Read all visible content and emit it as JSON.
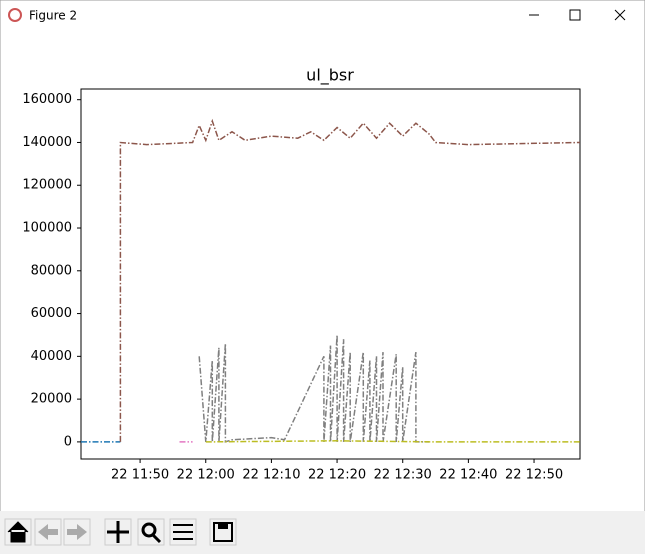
{
  "window": {
    "title": "Figure 2"
  },
  "chart_data": {
    "type": "line",
    "title": "ul_bsr",
    "xlim": [
      "22 11:41",
      "22 12:57"
    ],
    "xticks": [
      "22 11:50",
      "22 12:00",
      "22 12:10",
      "22 12:20",
      "22 12:30",
      "22 12:40",
      "22 12:50"
    ],
    "ylim": [
      -8000,
      165000
    ],
    "yticks": [
      0,
      20000,
      40000,
      60000,
      80000,
      100000,
      120000,
      140000,
      160000
    ],
    "series": [
      {
        "color": "#1f77b4",
        "x": [
          "22 11:41",
          "22 11:47"
        ],
        "values": [
          0,
          0
        ]
      },
      {
        "color": "#8c564b",
        "x": [
          "22 11:47",
          "22 11:47",
          "22 11:51",
          "22 11:58",
          "22 11:59",
          "22 12:00",
          "22 12:01",
          "22 12:02",
          "22 12:04",
          "22 12:06",
          "22 12:10",
          "22 12:14",
          "22 12:16",
          "22 12:18",
          "22 12:20",
          "22 12:22",
          "22 12:24",
          "22 12:26",
          "22 12:28",
          "22 12:30",
          "22 12:32",
          "22 12:34",
          "22 12:35",
          "22 12:40",
          "22 12:57"
        ],
        "values": [
          0,
          140000,
          139000,
          140000,
          148000,
          141000,
          150000,
          141000,
          145000,
          141000,
          143000,
          142000,
          145000,
          141000,
          147000,
          142000,
          149000,
          142000,
          149000,
          143000,
          149000,
          144000,
          140000,
          139000,
          140000
        ]
      },
      {
        "color": "#e377c2",
        "x": [
          "22 11:56",
          "22 11:58"
        ],
        "values": [
          0,
          0
        ]
      },
      {
        "color": "#7f7f7f",
        "x": [
          "22 11:59",
          "22 12:00",
          "22 12:01",
          "22 12:01",
          "22 12:02",
          "22 12:02",
          "22 12:03",
          "22 12:03",
          "22 12:04",
          "22 12:10",
          "22 12:12",
          "22 12:18",
          "22 12:18",
          "22 12:19",
          "22 12:19",
          "22 12:20",
          "22 12:20",
          "22 12:21",
          "22 12:21",
          "22 12:22",
          "22 12:22",
          "22 12:24",
          "22 12:24",
          "22 12:25",
          "22 12:25",
          "22 12:26",
          "22 12:26",
          "22 12:27",
          "22 12:27",
          "22 12:29",
          "22 12:29",
          "22 12:30",
          "22 12:30",
          "22 12:32",
          "22 12:32",
          "22 12:34"
        ],
        "values": [
          40000,
          0,
          38000,
          0,
          44000,
          0,
          46000,
          0,
          1000,
          2000,
          1000,
          40000,
          0,
          45000,
          0,
          50000,
          0,
          48000,
          0,
          42000,
          0,
          42000,
          0,
          38000,
          0,
          40000,
          0,
          42000,
          0,
          41000,
          0,
          35000,
          0,
          42000,
          0,
          0
        ]
      },
      {
        "color": "#bcbd22",
        "x": [
          "22 12:00",
          "22 12:20",
          "22 12:35",
          "22 12:57"
        ],
        "values": [
          0,
          500,
          0,
          0
        ]
      }
    ]
  }
}
